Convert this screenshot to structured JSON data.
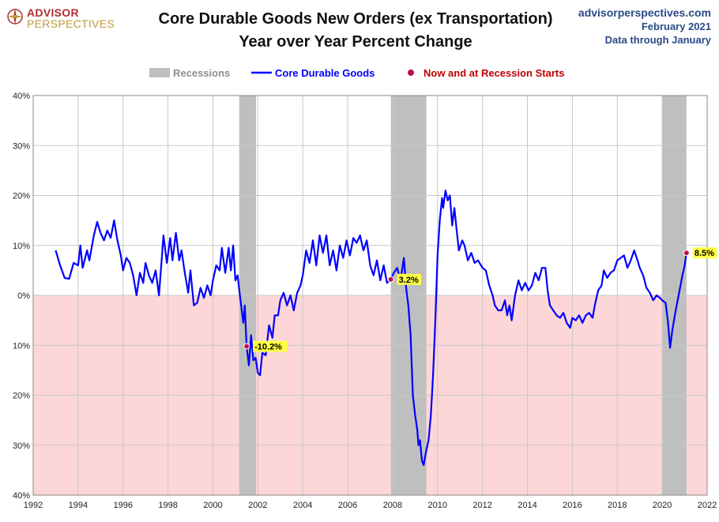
{
  "header": {
    "logo_line1": "ADVISOR",
    "logo_line2": "PERSPECTIVES",
    "title_line1": "Core Durable Goods New Orders (ex Transportation)",
    "title_line2": "Year over Year Percent Change",
    "site": "advisorperspectives.com",
    "date": "February 2021",
    "data_through": "Data through January"
  },
  "colors": {
    "series": "#0000ff",
    "recession": "#bfbfbf",
    "negative_zone": "#fdd7d7",
    "marker": "#c0104a",
    "label_bg": "#ffff44",
    "legend_text": "#c00000"
  },
  "chart_data": {
    "type": "line",
    "title": "Core Durable Goods New Orders (ex Transportation) Year over Year Percent Change",
    "xlabel": "",
    "ylabel": "",
    "xlim": [
      1992,
      2022
    ],
    "ylim": [
      -40,
      40
    ],
    "x_ticks": [
      1992,
      1994,
      1996,
      1998,
      2000,
      2002,
      2004,
      2006,
      2008,
      2010,
      2012,
      2014,
      2016,
      2018,
      2020,
      2022
    ],
    "x_tick_labels": [
      "1992",
      "1994",
      "1996",
      "1998",
      "2000",
      "2002",
      "2004",
      "2006",
      "2008",
      "2010",
      "2012",
      "2014",
      "2016",
      "2018",
      "2020",
      "2022"
    ],
    "y_ticks": [
      40,
      30,
      20,
      10,
      0,
      -10,
      -20,
      -30,
      -40
    ],
    "y_tick_labels": [
      "40%",
      "30%",
      "20%",
      "10%",
      "0%",
      "10%",
      "20%",
      "30%",
      "40%"
    ],
    "grid": true,
    "legend": [
      {
        "label": "Recessions",
        "kind": "band"
      },
      {
        "label": "Core Durable Goods",
        "kind": "line"
      },
      {
        "label": "Now and at Recession Starts",
        "kind": "marker"
      }
    ],
    "recessions": [
      {
        "start": 2001.17,
        "end": 2001.92
      },
      {
        "start": 2007.92,
        "end": 2009.5
      },
      {
        "start": 2020.0,
        "end": 2021.08
      }
    ],
    "series": [
      {
        "name": "Core Durable Goods",
        "points": [
          [
            1993.0,
            9
          ],
          [
            1993.2,
            6
          ],
          [
            1993.4,
            3.5
          ],
          [
            1993.6,
            3.3
          ],
          [
            1993.8,
            6.5
          ],
          [
            1994.0,
            6
          ],
          [
            1994.1,
            10
          ],
          [
            1994.2,
            5.5
          ],
          [
            1994.4,
            9
          ],
          [
            1994.5,
            7
          ],
          [
            1994.7,
            12
          ],
          [
            1994.85,
            14.7
          ],
          [
            1995.0,
            12.5
          ],
          [
            1995.15,
            11
          ],
          [
            1995.3,
            13
          ],
          [
            1995.45,
            11.5
          ],
          [
            1995.6,
            15
          ],
          [
            1995.75,
            11
          ],
          [
            1995.9,
            8
          ],
          [
            1996.0,
            5
          ],
          [
            1996.15,
            7.5
          ],
          [
            1996.3,
            6.5
          ],
          [
            1996.45,
            4
          ],
          [
            1996.6,
            0
          ],
          [
            1996.75,
            4.5
          ],
          [
            1996.9,
            2.5
          ],
          [
            1997.0,
            6.5
          ],
          [
            1997.15,
            4
          ],
          [
            1997.3,
            2.5
          ],
          [
            1997.45,
            5
          ],
          [
            1997.6,
            0
          ],
          [
            1997.7,
            6
          ],
          [
            1997.8,
            12
          ],
          [
            1997.95,
            6.5
          ],
          [
            1998.1,
            11.5
          ],
          [
            1998.2,
            7
          ],
          [
            1998.35,
            12.5
          ],
          [
            1998.5,
            7
          ],
          [
            1998.6,
            9
          ],
          [
            1998.75,
            4.5
          ],
          [
            1998.9,
            0.5
          ],
          [
            1999.0,
            5
          ],
          [
            1999.15,
            -2
          ],
          [
            1999.3,
            -1.5
          ],
          [
            1999.45,
            1.5
          ],
          [
            1999.6,
            -0.5
          ],
          [
            1999.75,
            2
          ],
          [
            1999.9,
            0
          ],
          [
            2000.0,
            3
          ],
          [
            2000.15,
            6
          ],
          [
            2000.3,
            5
          ],
          [
            2000.4,
            9.5
          ],
          [
            2000.55,
            4.5
          ],
          [
            2000.7,
            9.5
          ],
          [
            2000.8,
            5
          ],
          [
            2000.9,
            10
          ],
          [
            2001.0,
            3
          ],
          [
            2001.1,
            4
          ],
          [
            2001.2,
            0
          ],
          [
            2001.35,
            -5.5
          ],
          [
            2001.42,
            -2
          ],
          [
            2001.5,
            -10.2
          ],
          [
            2001.6,
            -14
          ],
          [
            2001.7,
            -8
          ],
          [
            2001.8,
            -13
          ],
          [
            2001.9,
            -12.5
          ],
          [
            2002.0,
            -15.5
          ],
          [
            2002.1,
            -16
          ],
          [
            2002.2,
            -11.5
          ],
          [
            2002.35,
            -12
          ],
          [
            2002.5,
            -6
          ],
          [
            2002.65,
            -8.5
          ],
          [
            2002.75,
            -4
          ],
          [
            2002.9,
            -4
          ],
          [
            2003.0,
            -1
          ],
          [
            2003.15,
            0.5
          ],
          [
            2003.3,
            -2
          ],
          [
            2003.45,
            0
          ],
          [
            2003.6,
            -3
          ],
          [
            2003.75,
            0.5
          ],
          [
            2003.9,
            2
          ],
          [
            2004.0,
            4
          ],
          [
            2004.15,
            9
          ],
          [
            2004.3,
            6.5
          ],
          [
            2004.45,
            11
          ],
          [
            2004.6,
            6
          ],
          [
            2004.75,
            12
          ],
          [
            2004.9,
            8.5
          ],
          [
            2005.05,
            12
          ],
          [
            2005.2,
            6
          ],
          [
            2005.35,
            9
          ],
          [
            2005.5,
            5
          ],
          [
            2005.65,
            10
          ],
          [
            2005.8,
            7.5
          ],
          [
            2005.95,
            11
          ],
          [
            2006.1,
            8
          ],
          [
            2006.25,
            11.5
          ],
          [
            2006.4,
            10.5
          ],
          [
            2006.55,
            12
          ],
          [
            2006.7,
            9
          ],
          [
            2006.85,
            11
          ],
          [
            2007.0,
            6
          ],
          [
            2007.15,
            4
          ],
          [
            2007.3,
            7
          ],
          [
            2007.45,
            3
          ],
          [
            2007.6,
            6
          ],
          [
            2007.75,
            2.5
          ],
          [
            2007.92,
            3.2
          ],
          [
            2008.05,
            4.5
          ],
          [
            2008.2,
            5.5
          ],
          [
            2008.35,
            3
          ],
          [
            2008.5,
            7.5
          ],
          [
            2008.6,
            1.5
          ],
          [
            2008.7,
            -2
          ],
          [
            2008.8,
            -8
          ],
          [
            2008.9,
            -20
          ],
          [
            2009.0,
            -24
          ],
          [
            2009.1,
            -27
          ],
          [
            2009.15,
            -30
          ],
          [
            2009.22,
            -29
          ],
          [
            2009.3,
            -33
          ],
          [
            2009.38,
            -34
          ],
          [
            2009.5,
            -31
          ],
          [
            2009.6,
            -29
          ],
          [
            2009.7,
            -24
          ],
          [
            2009.8,
            -16
          ],
          [
            2009.9,
            -5
          ],
          [
            2010.0,
            8
          ],
          [
            2010.1,
            15
          ],
          [
            2010.2,
            19.5
          ],
          [
            2010.25,
            17.5
          ],
          [
            2010.35,
            21
          ],
          [
            2010.45,
            19
          ],
          [
            2010.55,
            20
          ],
          [
            2010.65,
            14
          ],
          [
            2010.75,
            17.5
          ],
          [
            2010.85,
            13
          ],
          [
            2010.95,
            9
          ],
          [
            2011.1,
            11
          ],
          [
            2011.2,
            10
          ],
          [
            2011.35,
            7
          ],
          [
            2011.5,
            8.5
          ],
          [
            2011.65,
            6.5
          ],
          [
            2011.8,
            7
          ],
          [
            2012.0,
            5.5
          ],
          [
            2012.15,
            5
          ],
          [
            2012.3,
            2
          ],
          [
            2012.45,
            0
          ],
          [
            2012.55,
            -2
          ],
          [
            2012.7,
            -3
          ],
          [
            2012.85,
            -3
          ],
          [
            2013.0,
            -1
          ],
          [
            2013.1,
            -4
          ],
          [
            2013.2,
            -2
          ],
          [
            2013.3,
            -5
          ],
          [
            2013.45,
            0
          ],
          [
            2013.6,
            3
          ],
          [
            2013.75,
            1
          ],
          [
            2013.9,
            2.5
          ],
          [
            2014.05,
            1
          ],
          [
            2014.2,
            2
          ],
          [
            2014.35,
            4.5
          ],
          [
            2014.5,
            3
          ],
          [
            2014.65,
            5.5
          ],
          [
            2014.8,
            5.5
          ],
          [
            2014.9,
            1
          ],
          [
            2015.0,
            -2
          ],
          [
            2015.15,
            -3
          ],
          [
            2015.3,
            -4
          ],
          [
            2015.45,
            -4.5
          ],
          [
            2015.6,
            -3.5
          ],
          [
            2015.75,
            -5.5
          ],
          [
            2015.9,
            -6.5
          ],
          [
            2016.0,
            -4.5
          ],
          [
            2016.15,
            -5
          ],
          [
            2016.3,
            -4
          ],
          [
            2016.45,
            -5.5
          ],
          [
            2016.6,
            -4
          ],
          [
            2016.75,
            -3.5
          ],
          [
            2016.9,
            -4.5
          ],
          [
            2017.0,
            -2
          ],
          [
            2017.15,
            1
          ],
          [
            2017.3,
            2
          ],
          [
            2017.4,
            5
          ],
          [
            2017.55,
            3.5
          ],
          [
            2017.7,
            4.5
          ],
          [
            2017.85,
            5
          ],
          [
            2018.0,
            7
          ],
          [
            2018.15,
            7.5
          ],
          [
            2018.3,
            8
          ],
          [
            2018.45,
            5.5
          ],
          [
            2018.6,
            7
          ],
          [
            2018.75,
            9
          ],
          [
            2018.9,
            7
          ],
          [
            2019.0,
            5.5
          ],
          [
            2019.15,
            4
          ],
          [
            2019.3,
            1.5
          ],
          [
            2019.45,
            0.5
          ],
          [
            2019.6,
            -1
          ],
          [
            2019.75,
            0
          ],
          [
            2019.9,
            -0.5
          ],
          [
            2020.0,
            -1
          ],
          [
            2020.15,
            -1.5
          ],
          [
            2020.25,
            -5
          ],
          [
            2020.35,
            -10.5
          ],
          [
            2020.45,
            -7
          ],
          [
            2020.6,
            -3
          ],
          [
            2020.75,
            0.5
          ],
          [
            2020.9,
            4
          ],
          [
            2021.0,
            6
          ],
          [
            2021.08,
            8.5
          ]
        ]
      }
    ],
    "annotations": [
      {
        "x": 2001.5,
        "y": -10.2,
        "text": "-10.2%"
      },
      {
        "x": 2007.92,
        "y": 3.2,
        "text": "3.2%"
      },
      {
        "x": 2021.08,
        "y": 8.5,
        "text": "8.5%"
      }
    ]
  }
}
